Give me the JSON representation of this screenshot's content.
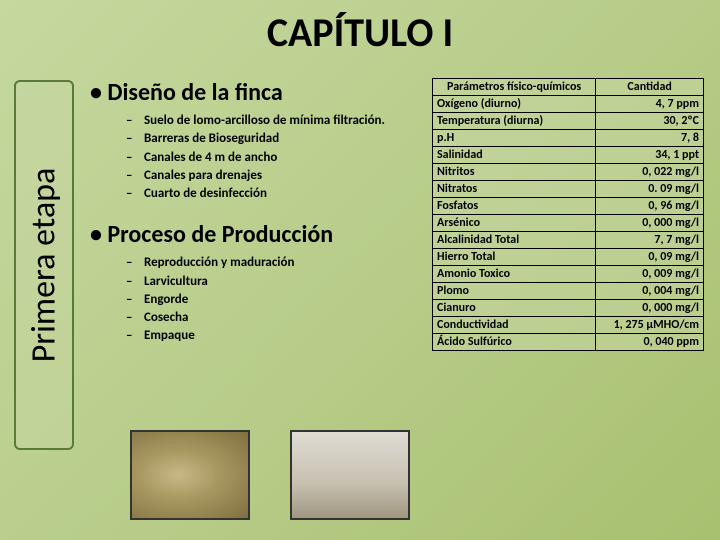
{
  "title": "CAPÍTULO I",
  "vertical_label": "Primera etapa",
  "section1": {
    "heading": "•  Diseño de la finca",
    "items": [
      "Suelo de lomo-arcilloso de mínima filtración.",
      "Barreras de Bioseguridad",
      "Canales de 4 m de ancho",
      "Canales para drenajes",
      "Cuarto de desinfección"
    ]
  },
  "section2": {
    "heading": "•  Proceso de Producción",
    "items": [
      "Reproducción y maduración",
      "Larvicultura",
      "Engorde",
      "Cosecha",
      "Empaque"
    ]
  },
  "table": {
    "headers": [
      "Parámetros físico-químicos",
      "Cantidad"
    ],
    "rows": [
      [
        "Oxígeno (diurno)",
        "4, 7 ppm"
      ],
      [
        "Temperatura (diurna)",
        "30, 2ºC"
      ],
      [
        "p.H",
        "7, 8"
      ],
      [
        "Salinidad",
        "34, 1 ppt"
      ],
      [
        "Nitritos",
        "0, 022 mg/l"
      ],
      [
        "Nitratos",
        "0. 09 mg/l"
      ],
      [
        "Fosfatos",
        "0, 96 mg/l"
      ],
      [
        "Arsénico",
        "0, 000 mg/l"
      ],
      [
        "Alcalinidad Total",
        "7, 7 mg/l"
      ],
      [
        "Hierro Total",
        "0, 09 mg/l"
      ],
      [
        "Amonio Toxico",
        "0, 009 mg/l"
      ],
      [
        "Plomo",
        "0, 004 mg/l"
      ],
      [
        "Cianuro",
        "0, 000 mg/l"
      ],
      [
        "Conductividad",
        "1, 275 µMHO/cm"
      ],
      [
        "Ácido Sulfúrico",
        "0, 040 ppm"
      ]
    ]
  },
  "colors": {
    "bg_start": "#c5d89f",
    "bg_end": "#a8c070",
    "border": "#5a7a3a"
  }
}
